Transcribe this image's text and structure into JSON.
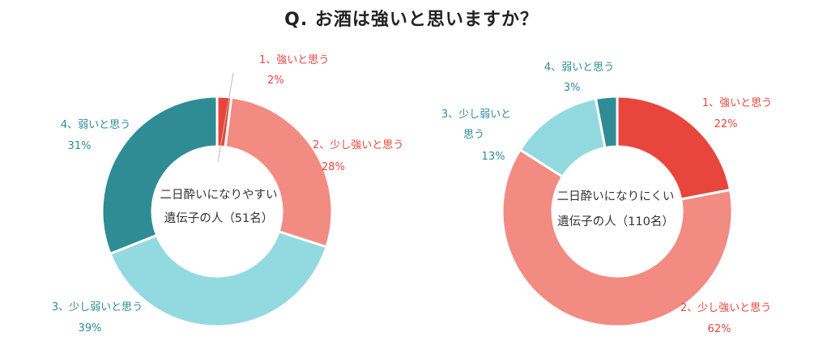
{
  "title": "Q. お酒は強いと思いますか？",
  "colors": {
    "strong": "#e8453c",
    "slightly_strong": "#f28b82",
    "slightly_weak": "#93d9e0",
    "weak": "#2f8c95",
    "label_red": "#e8453c",
    "label_teal": "#2f8c95"
  },
  "chart_data": [
    {
      "type": "pie",
      "variant": "donut",
      "center_label": [
        "二日酔いになりやすい",
        "遺伝子の人（51名）"
      ],
      "slices": [
        {
          "name": "強いと思う",
          "label": "1、強いと思う",
          "value": 2,
          "value_label": "2%"
        },
        {
          "name": "少し強いと思う",
          "label": "2、少し強いと思う",
          "value": 28,
          "value_label": "28%"
        },
        {
          "name": "少し弱いと思う",
          "label": "3、少し弱いと思う",
          "value": 39,
          "value_label": "39%"
        },
        {
          "name": "弱いと思う",
          "label": "4、弱いと思う",
          "value": 31,
          "value_label": "31%"
        }
      ]
    },
    {
      "type": "pie",
      "variant": "donut",
      "center_label": [
        "二日酔いになりにくい",
        "遺伝子の人（110名）"
      ],
      "slices": [
        {
          "name": "強いと思う",
          "label": "1、強いと思う",
          "value": 22,
          "value_label": "22%"
        },
        {
          "name": "少し強いと思う",
          "label": "2、少し強いと思う",
          "value": 62,
          "value_label": "62%"
        },
        {
          "name": "少し弱いと思う",
          "label": "3、少し弱いと思う",
          "value": 13,
          "value_label": "13%"
        },
        {
          "name": "弱いと思う",
          "label": "4、弱いと思う",
          "value": 3,
          "value_label": "3%"
        }
      ]
    }
  ]
}
